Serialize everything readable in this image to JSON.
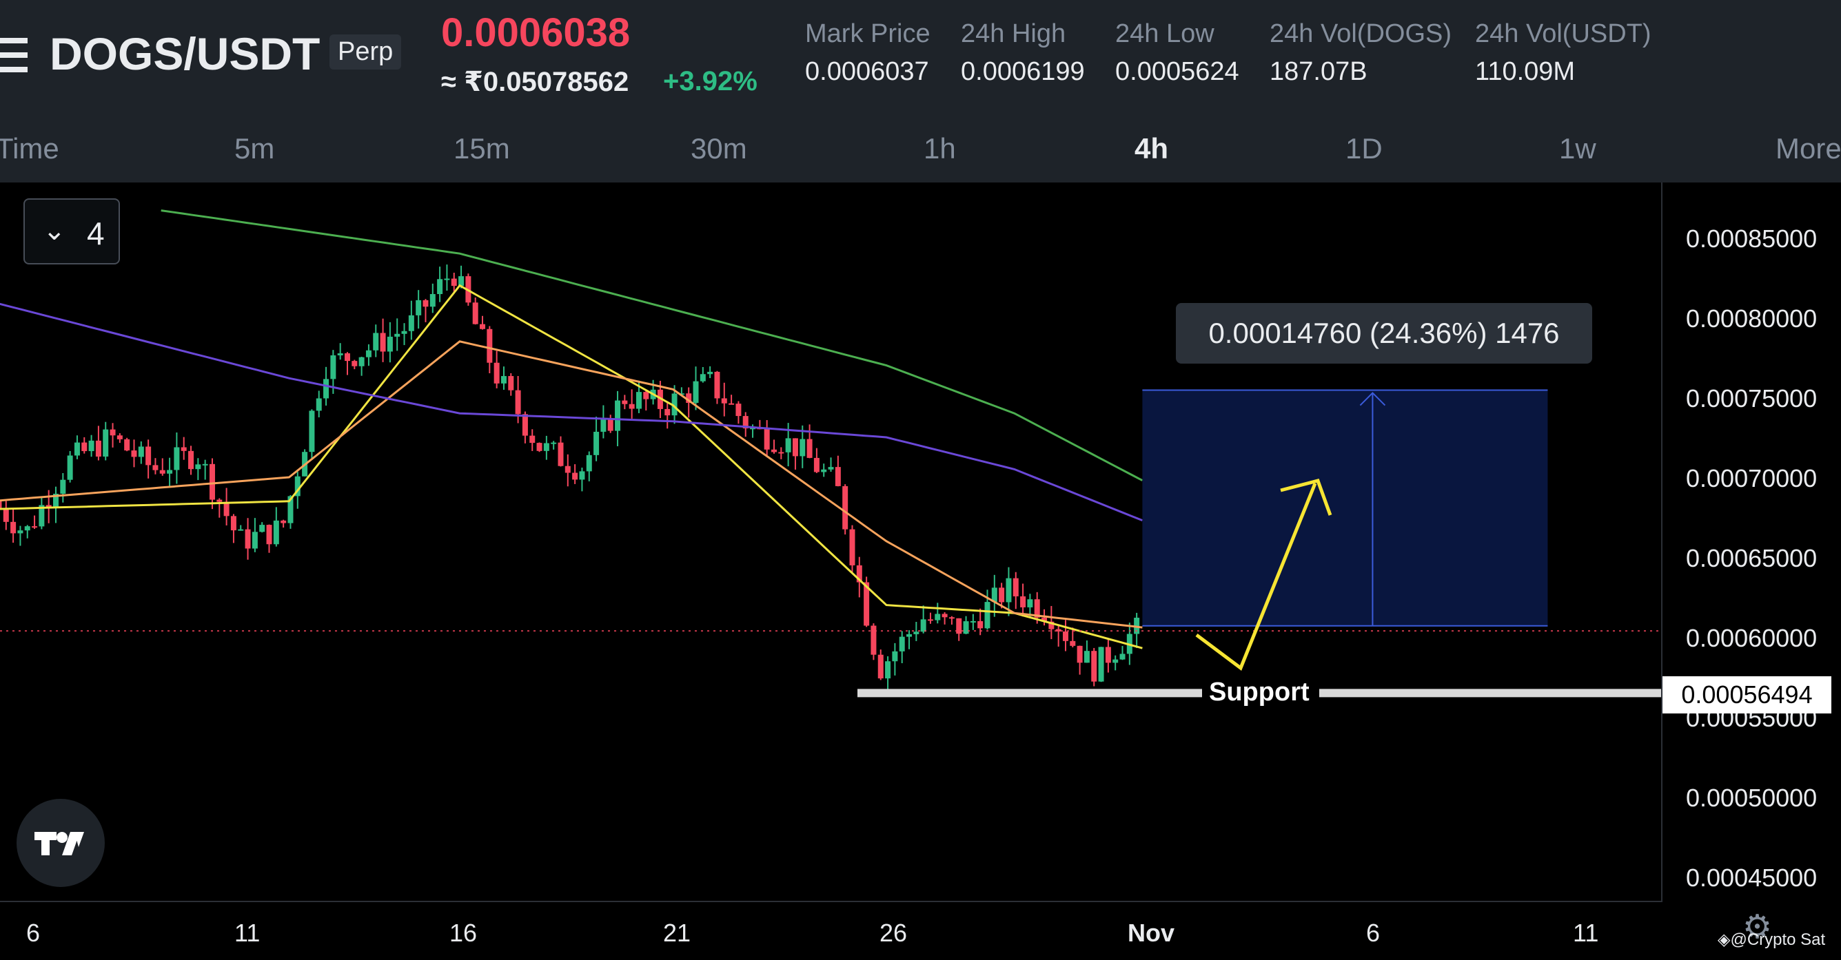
{
  "header": {
    "pair": "DOGS/USDT",
    "contract_type": "Perp",
    "last_price": "0.0006038",
    "inr_price": "≈ ₹0.05078562",
    "change_pct": "+3.92%",
    "stats": [
      {
        "label": "Mark Price",
        "value": "0.0006037"
      },
      {
        "label": "24h High",
        "value": "0.0006199"
      },
      {
        "label": "24h Low",
        "value": "0.0005624"
      },
      {
        "label": "24h Vol(DOGS)",
        "value": "187.07B"
      },
      {
        "label": "24h Vol(USDT)",
        "value": "110.09M"
      }
    ]
  },
  "timeframes": [
    "Time",
    "5m",
    "15m",
    "30m",
    "1h",
    "4h",
    "1D",
    "1w",
    "More"
  ],
  "active_timeframe": "4h",
  "indicator_toggle": {
    "icon": "chevron-down-icon",
    "count": "4"
  },
  "colors": {
    "up": "#2ebd85",
    "down": "#f6465d",
    "ma_fast": "#f0e442",
    "ma_mid": "#f7a35c",
    "ma_slow": "#6a48d7",
    "ma_long": "#4caf50",
    "range_fill": "#0a1a4a",
    "range_line": "#3b5bdb"
  },
  "annotations": {
    "measure_label": "0.00014760 (24.36%) 1476",
    "support_label": "Support",
    "current_price_tag": "0.00056494"
  },
  "watermark": "◈@Crypto Sat",
  "chart_data": {
    "type": "candlestick",
    "title": "",
    "xlabel": "",
    "ylabel": "",
    "y_ticks": [
      "0.00085000",
      "0.00080000",
      "0.00075000",
      "0.00070000",
      "0.00065000",
      "0.00060000",
      "0.00055000",
      "0.00050000",
      "0.00045000"
    ],
    "x_ticks": [
      "6",
      "11",
      "16",
      "21",
      "26",
      "Nov",
      "6",
      "11"
    ],
    "ylim": [
      0.00043,
      0.000875
    ],
    "price_trend": [
      {
        "day": 5,
        "price": 0.00069
      },
      {
        "day": 6,
        "price": 0.000665
      },
      {
        "day": 7,
        "price": 0.00071
      },
      {
        "day": 8,
        "price": 0.000725
      },
      {
        "day": 9,
        "price": 0.000705
      },
      {
        "day": 10,
        "price": 0.000715
      },
      {
        "day": 11,
        "price": 0.00066
      },
      {
        "day": 12,
        "price": 0.000668
      },
      {
        "day": 13,
        "price": 0.00077
      },
      {
        "day": 14,
        "price": 0.00078
      },
      {
        "day": 15,
        "price": 0.000795
      },
      {
        "day": 16,
        "price": 0.00083
      },
      {
        "day": 17,
        "price": 0.000765
      },
      {
        "day": 18,
        "price": 0.00072
      },
      {
        "day": 19,
        "price": 0.000705
      },
      {
        "day": 20,
        "price": 0.00075
      },
      {
        "day": 21,
        "price": 0.000745
      },
      {
        "day": 22,
        "price": 0.00076
      },
      {
        "day": 23,
        "price": 0.00073
      },
      {
        "day": 24,
        "price": 0.00072
      },
      {
        "day": 25,
        "price": 0.000695
      },
      {
        "day": 26,
        "price": 0.00058
      },
      {
        "day": 27,
        "price": 0.000612
      },
      {
        "day": 28,
        "price": 0.000605
      },
      {
        "day": 29,
        "price": 0.00063
      },
      {
        "day": 30,
        "price": 0.000615
      },
      {
        "day": 31,
        "price": 0.00058
      },
      {
        "day": 32,
        "price": 0.000604
      }
    ],
    "series": [
      {
        "values_day": [
          5,
          12,
          16,
          21,
          26,
          29,
          32
        ],
        "values": [
          0.00068,
          0.000685,
          0.00082,
          0.000745,
          0.00062,
          0.000615,
          0.000593
        ],
        "color_key": "ma_fast"
      },
      {
        "values_day": [
          5,
          12,
          16,
          21,
          26,
          29,
          32
        ],
        "values": [
          0.000685,
          0.0007,
          0.000785,
          0.000755,
          0.00066,
          0.000615,
          0.000606
        ],
        "color_key": "ma_mid"
      },
      {
        "values_day": [
          5,
          12,
          16,
          21,
          26,
          29,
          32
        ],
        "values": [
          0.00081,
          0.000762,
          0.00074,
          0.000735,
          0.000725,
          0.000705,
          0.000673
        ],
        "color_key": "ma_slow"
      },
      {
        "values_day": [
          9,
          16,
          21,
          26,
          29,
          32
        ],
        "values": [
          0.000867,
          0.00084,
          0.000805,
          0.00077,
          0.00074,
          0.000698
        ],
        "color_key": "ma_long"
      }
    ],
    "current_price": 0.0006038,
    "support_level": 0.00056494,
    "measure_range": {
      "from_price": 0.000607,
      "to_price": 0.0007545,
      "from_day": 32,
      "to_day": 41.5
    }
  }
}
